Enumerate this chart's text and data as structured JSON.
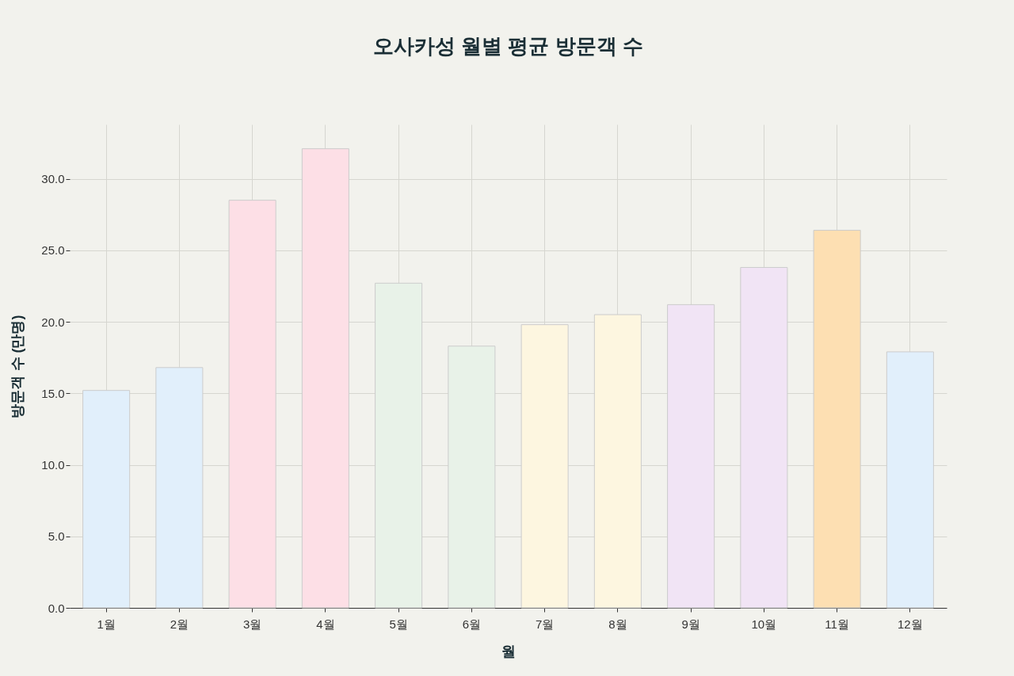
{
  "chart_data": {
    "type": "bar",
    "title": "오사카성 월별 평균 방문객 수",
    "xlabel": "월",
    "ylabel": "방문객 수 (만명)",
    "categories": [
      "1월",
      "2월",
      "3월",
      "4월",
      "5월",
      "6월",
      "7월",
      "8월",
      "9월",
      "10월",
      "11월",
      "12월"
    ],
    "values": [
      15.2,
      16.8,
      28.5,
      32.1,
      22.7,
      18.3,
      19.8,
      20.5,
      21.2,
      23.8,
      26.4,
      17.9
    ],
    "colors": [
      "#e1effb",
      "#e1effb",
      "#fddfe6",
      "#fddfe6",
      "#e8f2e8",
      "#e8f2e8",
      "#fdf6e0",
      "#fdf6e0",
      "#f1e4f5",
      "#f1e4f5",
      "#fddfb2",
      "#e1effb"
    ],
    "ylim": [
      0,
      33.8
    ],
    "yticks": [
      {
        "value": 0,
        "label": "0.0"
      },
      {
        "value": 5,
        "label": "5.0"
      },
      {
        "value": 10,
        "label": "10.0"
      },
      {
        "value": 15,
        "label": "15.0"
      },
      {
        "value": 20,
        "label": "20.0"
      },
      {
        "value": 25,
        "label": "25.0"
      },
      {
        "value": 30,
        "label": "30.0"
      }
    ],
    "grid": true
  }
}
